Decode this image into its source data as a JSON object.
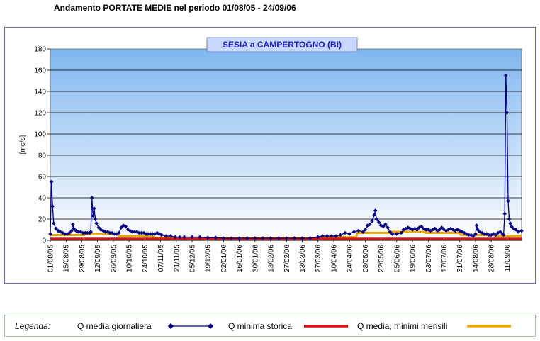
{
  "page": {
    "title": "Andamento PORTATE MEDIE nel periodo 01/08/05 - 24/09/06"
  },
  "legend": {
    "heading": "Legenda:",
    "items": [
      {
        "label": "Q media giornaliera",
        "color": "#000080",
        "style": "line-diamond"
      },
      {
        "label": "Q minima storica",
        "color": "#dd1111",
        "style": "thick-line"
      },
      {
        "label": "Q media, minimi mensili",
        "color": "#f0a800",
        "style": "thick-line"
      }
    ]
  },
  "chart_data": {
    "type": "line",
    "title": "SESIA a CAMPERTOGNO (BI)",
    "xlabel": "",
    "ylabel": "[mc/s]",
    "ylim": [
      0,
      180
    ],
    "yticks": [
      0,
      20,
      40,
      60,
      80,
      100,
      120,
      140,
      160,
      180
    ],
    "grid": true,
    "background": "gradient-blue",
    "legend_position": "bottom",
    "x_range": [
      "2005-08-01",
      "2006-09-24"
    ],
    "x_ticks": [
      "01/08/05",
      "15/08/05",
      "29/08/05",
      "12/09/05",
      "26/09/05",
      "10/10/05",
      "24/10/05",
      "07/11/05",
      "21/11/05",
      "05/12/05",
      "19/12/05",
      "02/01/06",
      "16/01/06",
      "30/01/06",
      "13/02/06",
      "27/02/06",
      "13/03/06",
      "27/03/06",
      "10/04/06",
      "24/04/06",
      "08/05/06",
      "22/05/06",
      "05/06/06",
      "19/06/06",
      "03/07/06",
      "17/07/06",
      "31/07/06",
      "14/08/06",
      "28/08/06",
      "11/09/06"
    ],
    "series": [
      {
        "name": "Q media giornaliera",
        "color": "#000080",
        "points": [
          [
            "01/08/05",
            6
          ],
          [
            "02/08/05",
            55
          ],
          [
            "03/08/05",
            32
          ],
          [
            "04/08/05",
            16
          ],
          [
            "06/08/05",
            11
          ],
          [
            "08/08/05",
            9
          ],
          [
            "10/08/05",
            8
          ],
          [
            "12/08/05",
            7
          ],
          [
            "14/08/05",
            6
          ],
          [
            "16/08/05",
            6
          ],
          [
            "18/08/05",
            7
          ],
          [
            "20/08/05",
            9
          ],
          [
            "21/08/05",
            15
          ],
          [
            "22/08/05",
            11
          ],
          [
            "24/08/05",
            9
          ],
          [
            "26/08/05",
            8
          ],
          [
            "28/08/05",
            8
          ],
          [
            "30/08/05",
            7
          ],
          [
            "01/09/05",
            7
          ],
          [
            "03/09/05",
            7
          ],
          [
            "05/09/05",
            7
          ],
          [
            "06/09/05",
            8
          ],
          [
            "07/09/05",
            40
          ],
          [
            "08/09/05",
            23
          ],
          [
            "09/09/05",
            30
          ],
          [
            "10/09/05",
            20
          ],
          [
            "11/09/05",
            16
          ],
          [
            "13/09/05",
            12
          ],
          [
            "15/09/05",
            10
          ],
          [
            "17/09/05",
            9
          ],
          [
            "19/09/05",
            8
          ],
          [
            "21/09/05",
            8
          ],
          [
            "23/09/05",
            7
          ],
          [
            "25/09/05",
            7
          ],
          [
            "27/09/05",
            6
          ],
          [
            "29/09/05",
            6
          ],
          [
            "01/10/05",
            7
          ],
          [
            "03/10/05",
            12
          ],
          [
            "05/10/05",
            14
          ],
          [
            "07/10/05",
            13
          ],
          [
            "09/10/05",
            10
          ],
          [
            "11/10/05",
            9
          ],
          [
            "13/10/05",
            8
          ],
          [
            "15/10/05",
            8
          ],
          [
            "17/10/05",
            8
          ],
          [
            "19/10/05",
            7
          ],
          [
            "21/10/05",
            7
          ],
          [
            "23/10/05",
            7
          ],
          [
            "25/10/05",
            6
          ],
          [
            "27/10/05",
            6
          ],
          [
            "29/10/05",
            6
          ],
          [
            "31/10/05",
            6
          ],
          [
            "02/11/05",
            6
          ],
          [
            "04/11/05",
            7
          ],
          [
            "06/11/05",
            6
          ],
          [
            "08/11/05",
            5
          ],
          [
            "12/11/05",
            4
          ],
          [
            "16/11/05",
            4
          ],
          [
            "20/11/05",
            3
          ],
          [
            "24/11/05",
            3
          ],
          [
            "28/11/05",
            3
          ],
          [
            "05/12/05",
            3
          ],
          [
            "12/12/05",
            3
          ],
          [
            "19/12/05",
            2.5
          ],
          [
            "26/12/05",
            2.5
          ],
          [
            "02/01/06",
            2
          ],
          [
            "09/01/06",
            2
          ],
          [
            "16/01/06",
            2
          ],
          [
            "23/01/06",
            2
          ],
          [
            "30/01/06",
            2
          ],
          [
            "06/02/06",
            2
          ],
          [
            "13/02/06",
            2
          ],
          [
            "20/02/06",
            2
          ],
          [
            "27/02/06",
            2
          ],
          [
            "06/03/06",
            2
          ],
          [
            "13/03/06",
            2
          ],
          [
            "20/03/06",
            2
          ],
          [
            "27/03/06",
            3
          ],
          [
            "31/03/06",
            4
          ],
          [
            "04/04/06",
            4
          ],
          [
            "08/04/06",
            4
          ],
          [
            "12/04/06",
            4
          ],
          [
            "16/04/06",
            5
          ],
          [
            "20/04/06",
            7
          ],
          [
            "24/04/06",
            6
          ],
          [
            "28/04/06",
            8
          ],
          [
            "02/05/06",
            9
          ],
          [
            "06/05/06",
            8
          ],
          [
            "08/05/06",
            10
          ],
          [
            "10/05/06",
            14
          ],
          [
            "12/05/06",
            15
          ],
          [
            "14/05/06",
            18
          ],
          [
            "16/05/06",
            24
          ],
          [
            "17/05/06",
            28
          ],
          [
            "18/05/06",
            20
          ],
          [
            "20/05/06",
            17
          ],
          [
            "22/05/06",
            14
          ],
          [
            "24/05/06",
            13
          ],
          [
            "26/05/06",
            15
          ],
          [
            "28/05/06",
            12
          ],
          [
            "30/05/06",
            8
          ],
          [
            "01/06/06",
            6
          ],
          [
            "05/06/06",
            6
          ],
          [
            "09/06/06",
            7
          ],
          [
            "11/06/06",
            10
          ],
          [
            "13/06/06",
            11
          ],
          [
            "15/06/06",
            12
          ],
          [
            "17/06/06",
            11
          ],
          [
            "19/06/06",
            10
          ],
          [
            "21/06/06",
            11
          ],
          [
            "23/06/06",
            10
          ],
          [
            "25/06/06",
            12
          ],
          [
            "27/06/06",
            13
          ],
          [
            "29/06/06",
            11
          ],
          [
            "01/07/06",
            10
          ],
          [
            "03/07/06",
            10
          ],
          [
            "05/07/06",
            9
          ],
          [
            "07/07/06",
            10
          ],
          [
            "09/07/06",
            11
          ],
          [
            "11/07/06",
            9
          ],
          [
            "13/07/06",
            10
          ],
          [
            "15/07/06",
            12
          ],
          [
            "17/07/06",
            10
          ],
          [
            "19/07/06",
            9
          ],
          [
            "21/07/06",
            10
          ],
          [
            "23/07/06",
            11
          ],
          [
            "25/07/06",
            10
          ],
          [
            "27/07/06",
            9
          ],
          [
            "29/07/06",
            10
          ],
          [
            "31/07/06",
            9
          ],
          [
            "02/08/06",
            8
          ],
          [
            "04/08/06",
            7
          ],
          [
            "06/08/06",
            6
          ],
          [
            "08/08/06",
            5
          ],
          [
            "10/08/06",
            5
          ],
          [
            "12/08/06",
            4
          ],
          [
            "14/08/06",
            6
          ],
          [
            "15/08/06",
            14
          ],
          [
            "16/08/06",
            10
          ],
          [
            "18/08/06",
            8
          ],
          [
            "20/08/06",
            7
          ],
          [
            "22/08/06",
            6
          ],
          [
            "24/08/06",
            6
          ],
          [
            "26/08/06",
            5
          ],
          [
            "28/08/06",
            5
          ],
          [
            "30/08/06",
            6
          ],
          [
            "01/09/06",
            5
          ],
          [
            "03/09/06",
            7
          ],
          [
            "05/09/06",
            8
          ],
          [
            "07/09/06",
            6
          ],
          [
            "08/09/06",
            5
          ],
          [
            "09/09/06",
            25
          ],
          [
            "10/09/06",
            155
          ],
          [
            "11/09/06",
            120
          ],
          [
            "12/09/06",
            37
          ],
          [
            "13/09/06",
            20
          ],
          [
            "14/09/06",
            16
          ],
          [
            "15/09/06",
            13
          ],
          [
            "17/09/06",
            11
          ],
          [
            "19/09/06",
            10
          ],
          [
            "21/09/06",
            8
          ],
          [
            "24/09/06",
            9
          ]
        ]
      },
      {
        "name": "Q minima storica",
        "color": "#dd1111",
        "points": [
          [
            "01/08/05",
            1.5
          ],
          [
            "24/09/06",
            1.5
          ]
        ]
      },
      {
        "name": "Q media, minimi mensili",
        "color": "#f0a800",
        "points": [
          [
            "01/08/05",
            5
          ],
          [
            "31/08/05",
            5
          ],
          [
            "01/09/05",
            6
          ],
          [
            "30/09/05",
            6
          ],
          [
            "01/10/05",
            4
          ],
          [
            "31/10/05",
            4
          ],
          [
            "01/11/05",
            2.5
          ],
          [
            "30/11/05",
            2.5
          ],
          [
            "01/12/05",
            2
          ],
          [
            "31/03/06",
            2
          ],
          [
            "01/04/06",
            3
          ],
          [
            "30/04/06",
            3
          ],
          [
            "01/05/06",
            7
          ],
          [
            "31/05/06",
            7
          ],
          [
            "01/06/06",
            8
          ],
          [
            "30/06/06",
            8
          ],
          [
            "01/07/06",
            7
          ],
          [
            "31/07/06",
            7
          ],
          [
            "01/08/06",
            5
          ],
          [
            "31/08/06",
            5
          ],
          [
            "01/09/06",
            4
          ],
          [
            "24/09/06",
            4
          ]
        ]
      }
    ]
  }
}
